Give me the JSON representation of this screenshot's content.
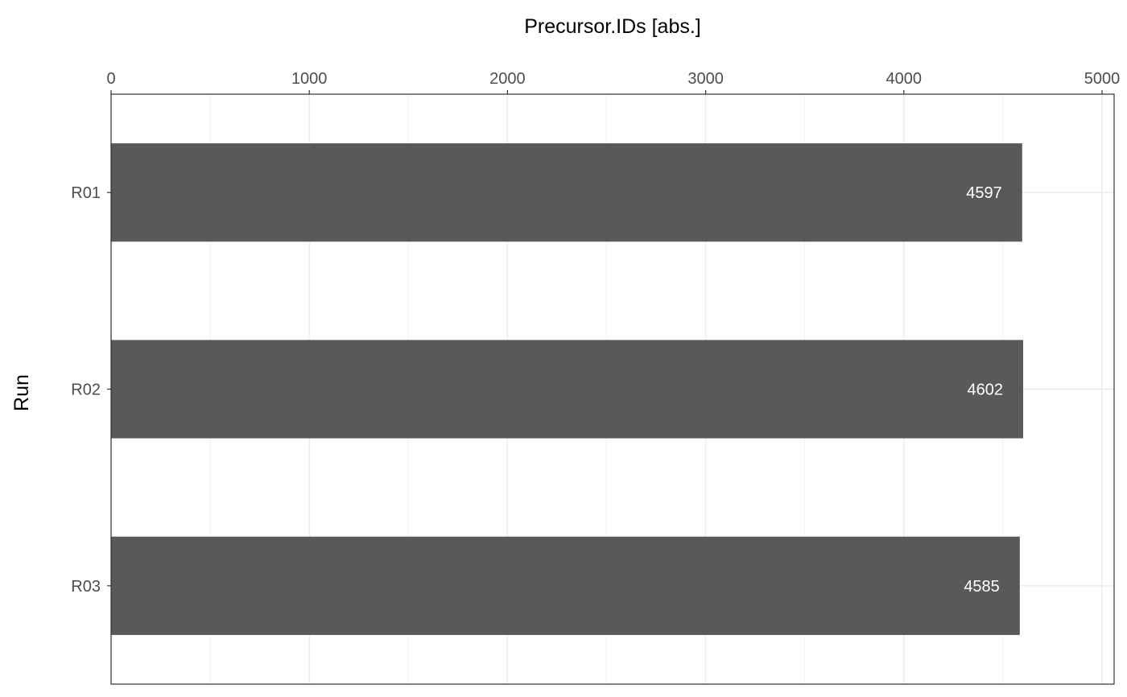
{
  "chart_data": {
    "type": "bar",
    "orientation": "horizontal",
    "categories": [
      "R01",
      "R02",
      "R03"
    ],
    "values": [
      4597,
      4602,
      4585
    ],
    "data_labels": [
      "4597",
      "4602",
      "4585"
    ],
    "xlabel": "Precursor.IDs  [abs.]",
    "ylabel": "Run",
    "xlim": [
      0,
      5000
    ],
    "x_ticks": [
      0,
      1000,
      2000,
      3000,
      4000,
      5000
    ],
    "x_tick_labels": [
      "0",
      "1000",
      "2000",
      "3000",
      "4000",
      "5000"
    ],
    "x_axis_position": "top",
    "grid": true,
    "legend": "none",
    "colors": {
      "bar": "#595959",
      "grid_major": "#ebebeb",
      "grid_minor": "#f2f2f2",
      "panel_border": "#333333",
      "tick_text": "#4d4d4d",
      "data_label": "#ffffff"
    }
  }
}
